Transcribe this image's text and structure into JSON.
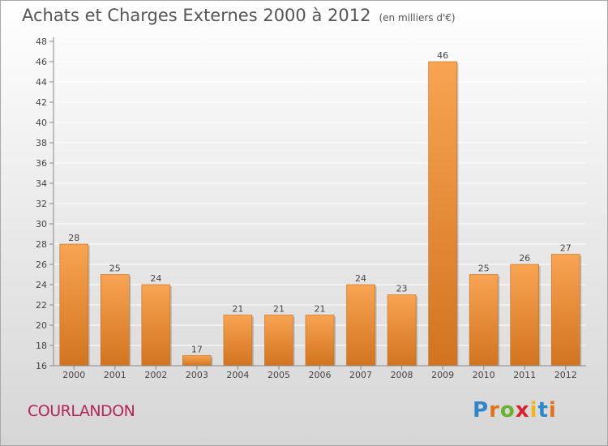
{
  "chart_data": {
    "type": "bar",
    "title": "Achats et Charges Externes 2000 à 2012",
    "subtitle": "(en milliers d'€)",
    "categories": [
      "2000",
      "2001",
      "2002",
      "2003",
      "2004",
      "2005",
      "2006",
      "2007",
      "2008",
      "2009",
      "2010",
      "2011",
      "2012"
    ],
    "values": [
      28,
      25,
      24,
      17,
      21,
      21,
      21,
      24,
      23,
      46,
      25,
      26,
      27
    ],
    "ylim": [
      16,
      48
    ],
    "yticks": [
      16,
      18,
      20,
      22,
      24,
      26,
      28,
      30,
      32,
      34,
      36,
      38,
      40,
      42,
      44,
      46,
      48
    ],
    "grid": true,
    "bar_color_top": "#f8a452",
    "bar_color_bottom": "#d2741f"
  },
  "footer": {
    "commune": "COURLANDON",
    "logo_letters": [
      "P",
      "r",
      "o",
      "x",
      "i",
      "t",
      "i"
    ],
    "logo_colors": [
      "#2f86c8",
      "#e2731c",
      "#6ab12e",
      "#d8202e",
      "#f0b41c",
      "#2f86c8",
      "#e2731c"
    ]
  }
}
